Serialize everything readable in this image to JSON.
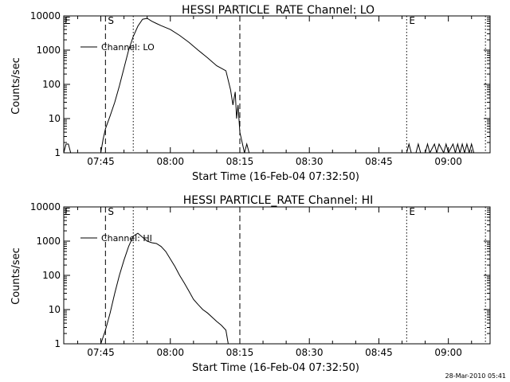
{
  "timestamp": "28-Mar-2010 05:41",
  "chart_data": [
    {
      "type": "line",
      "scale_y": "log",
      "title": "HESSI PARTICLE_RATE Channel: LO",
      "xlabel": "Start Time (16-Feb-04 07:32:50)",
      "ylabel": "Counts/sec",
      "xlim": [
        "07:37",
        "09:09"
      ],
      "ylim": [
        1,
        10000
      ],
      "x_ticks": [
        "07:45",
        "08:00",
        "08:15",
        "08:30",
        "08:45",
        "09:00"
      ],
      "y_ticks": [
        "1",
        "10",
        "100",
        "1000",
        "10000"
      ],
      "legend": "top-left",
      "markers": [
        {
          "label": "S",
          "x": "07:46",
          "style": "dashed"
        },
        {
          "label": "",
          "x": "07:52",
          "style": "dotted"
        },
        {
          "label": "",
          "x": "08:15",
          "style": "dashed"
        },
        {
          "label": "E",
          "x": "08:51",
          "style": "dotted"
        },
        {
          "label": "",
          "x": "09:08",
          "style": "dotted"
        }
      ],
      "series": [
        {
          "name": "Channel: LO",
          "x": [
            "07:37",
            "07:37.5",
            "07:38",
            "07:38.5",
            "07:45",
            "07:45.5",
            "07:46",
            "07:47",
            "07:48",
            "07:49",
            "07:50",
            "07:51",
            "07:52",
            "07:53",
            "07:54",
            "07:55",
            "07:56",
            "07:57",
            "07:58",
            "08:00",
            "08:02",
            "08:04",
            "08:06",
            "08:08",
            "08:10",
            "08:12",
            "08:13",
            "08:13.5",
            "08:14",
            "08:14.3",
            "08:14.6",
            "08:15",
            "08:15.5",
            "08:16",
            "08:16.5",
            "08:17",
            "08:51",
            "08:51.5",
            "08:52",
            "08:53",
            "08:53.5",
            "08:54",
            "08:55",
            "08:55.5",
            "08:56",
            "08:57",
            "08:57.5",
            "08:58",
            "08:59",
            "08:59.5",
            "09:00",
            "09:01",
            "09:01.5",
            "09:02",
            "09:02.5",
            "09:03",
            "09:03.5",
            "09:04",
            "09:04.5",
            "09:05",
            "09:05.5",
            "09:06"
          ],
          "y": [
            1,
            1.8,
            1.8,
            1,
            1,
            2.5,
            5,
            12,
            30,
            90,
            300,
            1000,
            2500,
            5000,
            8000,
            8500,
            7000,
            6000,
            5200,
            4000,
            2700,
            1700,
            1000,
            600,
            350,
            250,
            70,
            25,
            60,
            10,
            25,
            4,
            2,
            1,
            1.8,
            1,
            1,
            1.8,
            1,
            1,
            1.8,
            1,
            1,
            1.8,
            1,
            1.8,
            1,
            1.8,
            1,
            1.8,
            1,
            1.8,
            1,
            1.8,
            1,
            1.8,
            1,
            1.8,
            1,
            1.8,
            1,
            1
          ]
        }
      ]
    },
    {
      "type": "line",
      "scale_y": "log",
      "title": "HESSI PARTICLE_RATE Channel: HI",
      "xlabel": "Start Time (16-Feb-04 07:32:50)",
      "ylabel": "Counts/sec",
      "xlim": [
        "07:37",
        "09:09"
      ],
      "ylim": [
        1,
        10000
      ],
      "x_ticks": [
        "07:45",
        "08:00",
        "08:15",
        "08:30",
        "08:45",
        "09:00"
      ],
      "y_ticks": [
        "1",
        "10",
        "100",
        "1000",
        "10000"
      ],
      "legend": "top-left",
      "markers": [
        {
          "label": "S",
          "x": "07:46",
          "style": "dashed"
        },
        {
          "label": "",
          "x": "07:52",
          "style": "dotted"
        },
        {
          "label": "",
          "x": "08:15",
          "style": "dashed"
        },
        {
          "label": "E",
          "x": "08:51",
          "style": "dotted"
        },
        {
          "label": "",
          "x": "09:08",
          "style": "dotted"
        }
      ],
      "series": [
        {
          "name": "Channel: HI",
          "x": [
            "07:45",
            "07:46",
            "07:47",
            "07:48",
            "07:49",
            "07:50",
            "07:51",
            "07:52",
            "07:53",
            "07:54",
            "07:55",
            "07:56",
            "07:57",
            "07:58",
            "07:59",
            "08:00",
            "08:01",
            "08:02",
            "08:03",
            "08:04",
            "08:05",
            "08:06",
            "08:07",
            "08:08",
            "08:09",
            "08:10",
            "08:11",
            "08:12",
            "08:12.5"
          ],
          "y": [
            1,
            2.5,
            8,
            30,
            100,
            280,
            700,
            1400,
            1700,
            1300,
            1000,
            900,
            850,
            700,
            500,
            300,
            180,
            100,
            60,
            35,
            20,
            14,
            10,
            8,
            6,
            4.5,
            3.5,
            2.5,
            1
          ]
        }
      ]
    }
  ]
}
